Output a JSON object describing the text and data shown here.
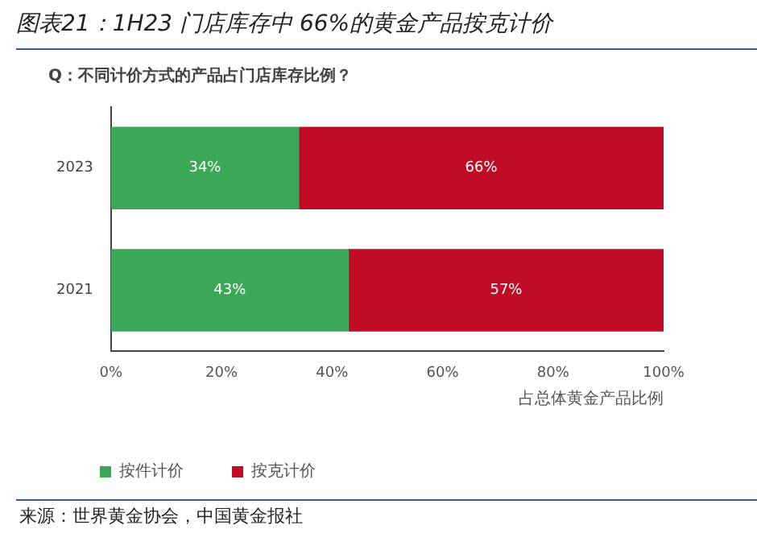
{
  "chart_data": {
    "type": "bar",
    "orientation": "horizontal",
    "stacked": true,
    "title": "图表21：1H23 门店库存中 66%的黄金产品按克计价",
    "subtitle": "Q：不同计价方式的产品占门店库存比例？",
    "xlabel": "占总体黄金产品比例",
    "categories": [
      "2023",
      "2021"
    ],
    "series": [
      {
        "name": "按件计价",
        "color": "#3aa856",
        "values": [
          34,
          43
        ],
        "value_labels": [
          "34%",
          "43%"
        ]
      },
      {
        "name": "按克计价",
        "color": "#c00c25",
        "values": [
          66,
          57
        ],
        "value_labels": [
          "66%",
          "57%"
        ]
      }
    ],
    "xlim": [
      0,
      100
    ],
    "xticks": [
      {
        "value": 0,
        "label": "0%"
      },
      {
        "value": 20,
        "label": "20%"
      },
      {
        "value": 40,
        "label": "40%"
      },
      {
        "value": 60,
        "label": "60%"
      },
      {
        "value": 80,
        "label": "80%"
      },
      {
        "value": 100,
        "label": "100%"
      }
    ],
    "grid": false,
    "legend": "bottom left",
    "annotations": [
      "来源：世界黄金协会，中国黄金报社"
    ]
  }
}
